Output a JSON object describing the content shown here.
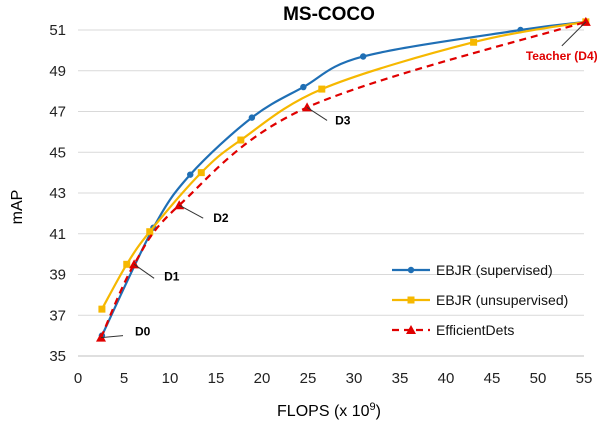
{
  "chart_data": {
    "type": "line",
    "title": "MS-COCO",
    "xlabel": "FLOPS (x 10",
    "xlabel_sup": "9",
    "xlabel_end": ")",
    "ylabel": "mAP",
    "xlim": [
      0,
      55
    ],
    "ylim": [
      35,
      51
    ],
    "x_ticks": [
      "0",
      "5",
      "10",
      "15",
      "20",
      "25",
      "30",
      "35",
      "40",
      "45",
      "50",
      "55"
    ],
    "y_ticks": [
      "35",
      "37",
      "39",
      "41",
      "43",
      "45",
      "47",
      "49",
      "51"
    ],
    "grid": "horizontal",
    "legend_position": "lower-right",
    "series": [
      {
        "name": "EBJR (supervised)",
        "color": "#1f6fb5",
        "marker": "circle",
        "dash": "solid",
        "points": [
          [
            2.6,
            36.0
          ],
          [
            8.2,
            41.3
          ],
          [
            12.2,
            43.9
          ],
          [
            18.9,
            46.7
          ],
          [
            24.5,
            48.2
          ],
          [
            31.0,
            49.7
          ],
          [
            48.1,
            51.0
          ],
          [
            55.2,
            51.4
          ]
        ]
      },
      {
        "name": "EBJR (unsupervised)",
        "color": "#f6b800",
        "marker": "square",
        "dash": "solid",
        "points": [
          [
            2.6,
            37.3
          ],
          [
            5.3,
            39.5
          ],
          [
            7.8,
            41.1
          ],
          [
            13.4,
            44.0
          ],
          [
            17.7,
            45.6
          ],
          [
            26.5,
            48.1
          ],
          [
            43.0,
            50.4
          ],
          [
            55.2,
            51.4
          ]
        ]
      },
      {
        "name": "EfficientDets",
        "color": "#e00000",
        "marker": "triangle",
        "dash": "dashed",
        "points": [
          [
            2.5,
            35.9
          ],
          [
            6.1,
            39.5
          ],
          [
            11.0,
            42.4
          ],
          [
            24.9,
            47.2
          ],
          [
            55.2,
            51.4
          ]
        ]
      }
    ],
    "annotations": [
      {
        "label": "D0",
        "x": 2.5,
        "y": 35.9,
        "color": "#000000"
      },
      {
        "label": "D1",
        "x": 6.1,
        "y": 39.5,
        "color": "#000000"
      },
      {
        "label": "D2",
        "x": 11.0,
        "y": 42.4,
        "color": "#000000"
      },
      {
        "label": "D3",
        "x": 24.9,
        "y": 47.2,
        "color": "#000000"
      },
      {
        "label": "Teacher (D4)",
        "x": 55.2,
        "y": 51.4,
        "color": "#e00000"
      }
    ]
  }
}
